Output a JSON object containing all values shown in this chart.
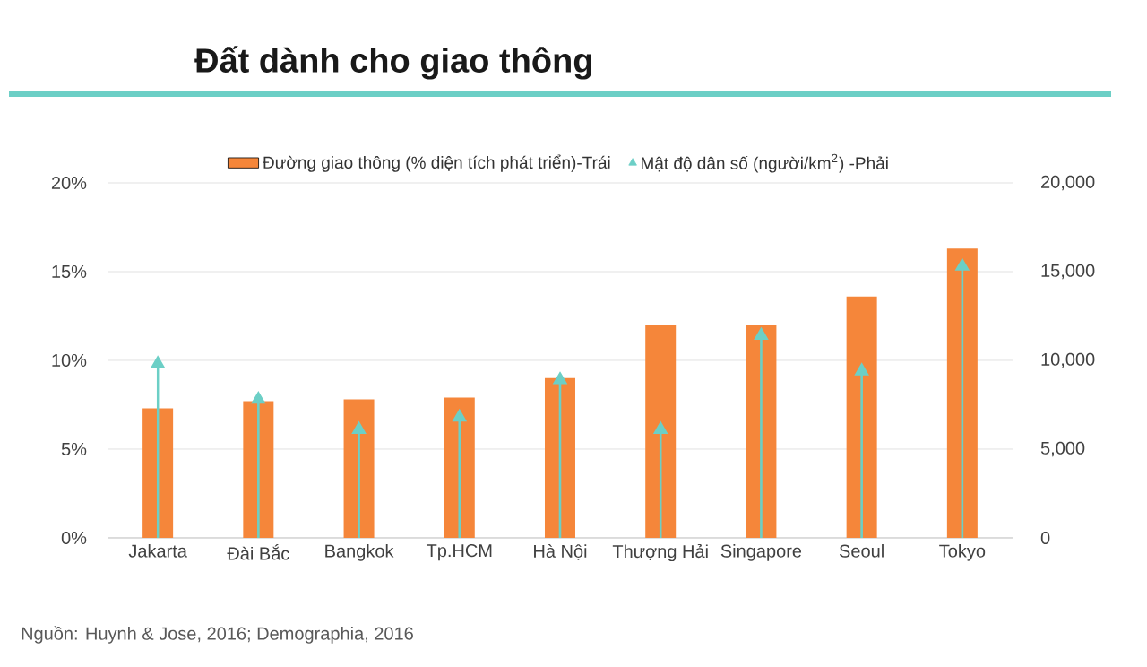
{
  "chart_data": {
    "type": "bar",
    "title": "Đất dành cho giao thông",
    "categories": [
      "Jakarta",
      "Đài Bắc",
      "Bangkok",
      "Tp.HCM",
      "Hà Nội",
      "Thượng Hải",
      "Singapore",
      "Seoul",
      "Tokyo"
    ],
    "series": [
      {
        "name": "Đường giao thông (% diện tích phát triển)-Trái",
        "color": "#f5863a",
        "values": [
          7.3,
          7.7,
          7.8,
          7.9,
          9.0,
          12.0,
          12.0,
          13.6,
          16.3
        ]
      },
      {
        "name": "Mật độ dân số (người/km$^{2}$) -Phải",
        "type": "lollipop",
        "axis": "y2",
        "color": "#6ccfc6",
        "values": [
          9800,
          7800,
          6100,
          6800,
          8900,
          6100,
          11400,
          9400,
          15300
        ]
      }
    ],
    "ylim": [
      0,
      20
    ],
    "yticks": [
      {
        "value": 0,
        "label": "0%"
      },
      {
        "value": 5,
        "label": "5%"
      },
      {
        "value": 10,
        "label": "10%"
      },
      {
        "value": 15,
        "label": "15%"
      },
      {
        "value": 20,
        "label": "20%"
      }
    ],
    "y2lim": [
      0,
      20000
    ],
    "y2ticks": [
      0,
      {
        "value": 5000,
        "label": "5,000"
      },
      {
        "value": 10000,
        "label": "10,000"
      },
      {
        "value": 15000,
        "label": "15,000"
      },
      {
        "value": 20000,
        "label": "20,000"
      }
    ],
    "grid": "y",
    "legend": "top",
    "marker": "triangle",
    "annotations": [
      "Nguồn: Huynh & Jose, 2016; Demographia, 2016"
    ]
  }
}
